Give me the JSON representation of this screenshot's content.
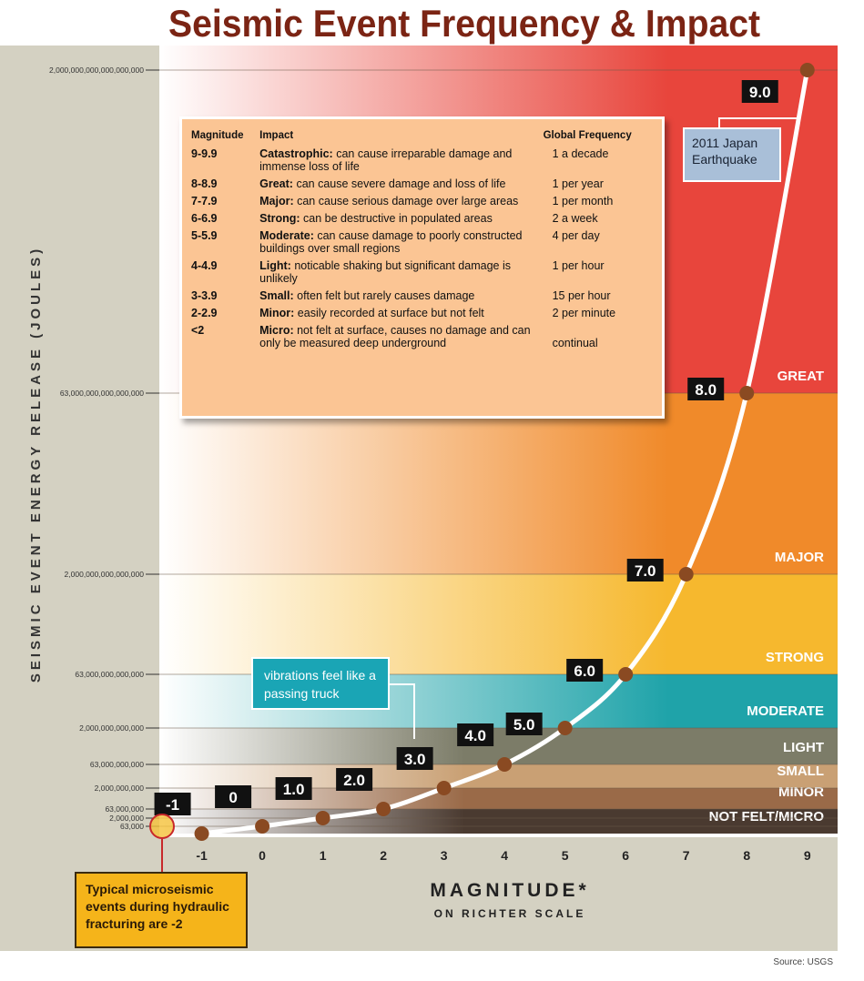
{
  "chart_data": {
    "type": "line",
    "title": "Seismic Event Frequency & Impact",
    "y_label": "SEISMIC EVENT ENERGY RELEASE (JOULES)",
    "x_label": "MAGNITUDE*",
    "x_sublabel": "ON RICHTER SCALE",
    "source": "Source: USGS",
    "x": [
      -1,
      0,
      1,
      2,
      3,
      4,
      5,
      6,
      7,
      8,
      9
    ],
    "values": [
      2000,
      63000,
      2000000,
      63000000,
      2000000000,
      63000000000,
      2000000000000,
      63000000000000,
      2000000000000000,
      63000000000000000,
      2000000000000000000
    ],
    "point_labels": [
      "-1",
      "0",
      "1.0",
      "2.0",
      "3.0",
      "4.0",
      "5.0",
      "6.0",
      "7.0",
      "8.0",
      "9.0"
    ],
    "color": "#ffffff",
    "point_color": "#8a4a22",
    "xlim": [
      -1.7,
      9.5
    ],
    "xticks": [
      -1,
      0,
      1,
      2,
      3,
      4,
      5,
      6,
      7,
      8,
      9
    ],
    "ylim": [
      2000,
      2000000000000000000
    ],
    "yticks": [
      {
        "value": 63000,
        "label": "63,000"
      },
      {
        "value": 2000000,
        "label": "2,000,000"
      },
      {
        "value": 63000000,
        "label": "63,000,000"
      },
      {
        "value": 2000000000,
        "label": "2,000,000,000"
      },
      {
        "value": 63000000000,
        "label": "63,000,000,000"
      },
      {
        "value": 2000000000000,
        "label": "2,000,000,000,000"
      },
      {
        "value": 63000000000000,
        "label": "63,000,000,000,000"
      },
      {
        "value": 2000000000000000,
        "label": "2,000,000,000,000,000"
      },
      {
        "value": 63000000000000000,
        "label": "63,000,000,000,000,000"
      },
      {
        "value": 2000000000000000000,
        "label": "2,000,000,000,000,000,000"
      }
    ],
    "grid": true,
    "bands": [
      {
        "label": "GREAT",
        "from": 63000000000000000,
        "color": "#e8453c"
      },
      {
        "label": "MAJOR",
        "from": 2000000000000000,
        "color": "#f08a2a"
      },
      {
        "label": "STRONG",
        "from": 63000000000000,
        "color": "#f6b82e"
      },
      {
        "label": "MODERATE",
        "from": 2000000000000,
        "color": "#1fa3a9"
      },
      {
        "label": "LIGHT",
        "from": 63000000000,
        "color": "#7c7c68"
      },
      {
        "label": "SMALL",
        "from": 2000000000,
        "color": "#c9a074"
      },
      {
        "label": "MINOR",
        "from": 63000000,
        "color": "#9a6a48"
      },
      {
        "label": "NOT FELT/MICRO",
        "from": 2000,
        "color": "#4a3a30"
      }
    ],
    "annotations": {
      "japan": "2011 Japan Earthquake",
      "truck": "vibrations feel like a passing truck",
      "fracturing": "Typical microseismic events during hydraulic fracturing are -2"
    },
    "table": {
      "columns": [
        "Magnitude",
        "Impact",
        "Global Frequency"
      ],
      "rows": [
        {
          "magnitude": "9-9.9",
          "term": "Catastrophic:",
          "description": "can cause irreparable damage and immense loss of life",
          "frequency": "1 a decade"
        },
        {
          "magnitude": "8-8.9",
          "term": "Great:",
          "description": "can cause severe damage and loss of life",
          "frequency": "1 per year"
        },
        {
          "magnitude": "7-7.9",
          "term": "Major:",
          "description": "can cause serious damage over large areas",
          "frequency": "1 per month"
        },
        {
          "magnitude": "6-6.9",
          "term": "Strong:",
          "description": "can be destructive in populated areas",
          "frequency": "2 a week"
        },
        {
          "magnitude": "5-5.9",
          "term": "Moderate:",
          "description": "can cause damage to poorly constructed buildings over small regions",
          "frequency": "4 per day"
        },
        {
          "magnitude": "4-4.9",
          "term": "Light:",
          "description": "noticable shaking but significant damage is unlikely",
          "frequency": "1 per hour"
        },
        {
          "magnitude": "3-3.9",
          "term": "Small:",
          "description": "often felt but rarely causes damage",
          "frequency": "15 per hour"
        },
        {
          "magnitude": "2-2.9",
          "term": "Minor:",
          "description": "easily recorded at surface but not felt",
          "frequency": "2 per minute"
        },
        {
          "magnitude": "<2",
          "term": "Micro:",
          "description": "not felt at surface, causes no damage and can only be measured deep underground",
          "frequency": "continual"
        }
      ]
    }
  }
}
